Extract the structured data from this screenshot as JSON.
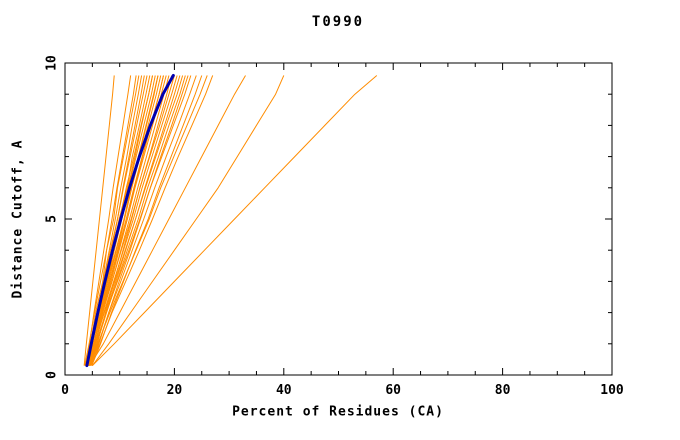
{
  "chart_data": {
    "type": "line",
    "title": "T0990",
    "xlabel": "Percent of Residues (CA)",
    "ylabel": "Distance Cutoff, A",
    "xlim": [
      0,
      100
    ],
    "ylim": [
      0,
      10
    ],
    "grid": false,
    "legend": "none",
    "xticks": {
      "major": [
        0,
        20,
        40,
        60,
        80,
        100
      ],
      "minor_step": 5
    },
    "yticks": {
      "major": [
        0,
        5,
        10
      ],
      "minor_step": 1
    },
    "y_samples": [
      0.3,
      1,
      2,
      3,
      4,
      5,
      6,
      7,
      8,
      9,
      9.6
    ],
    "highlight_series": {
      "name": "blue-center-line",
      "color": "#0000b0",
      "width": 3,
      "x": [
        4.0,
        4.8,
        6.0,
        7.3,
        8.7,
        10.2,
        11.8,
        13.6,
        15.6,
        17.9,
        19.8
      ]
    },
    "model_series": {
      "name": "orange-model-lines",
      "color": "#ff8c00",
      "width": 1,
      "lines": [
        [
          3.5,
          3.9,
          4.5,
          5.1,
          5.7,
          6.3,
          6.9,
          7.5,
          8.1,
          8.7,
          9.0
        ],
        [
          3.8,
          4.5,
          5.3,
          6.2,
          7.1,
          8.0,
          8.8,
          9.7,
          10.6,
          11.5,
          12.0
        ],
        [
          4.0,
          4.7,
          5.6,
          6.9,
          7.6,
          8.6,
          9.5,
          10.5,
          11.5,
          12.5,
          13.0
        ],
        [
          3.6,
          4.4,
          5.4,
          6.5,
          7.6,
          8.9,
          9.6,
          10.7,
          11.8,
          12.9,
          13.5
        ],
        [
          4.2,
          5.0,
          6.0,
          7.0,
          8.1,
          9.2,
          10.2,
          11.3,
          12.3,
          13.4,
          14.0
        ],
        [
          4.5,
          5.3,
          6.3,
          7.7,
          8.5,
          9.6,
          10.6,
          11.7,
          12.8,
          13.9,
          14.5
        ],
        [
          3.9,
          4.8,
          5.9,
          7.1,
          8.3,
          9.6,
          10.7,
          11.9,
          13.1,
          14.3,
          15.0
        ],
        [
          4.1,
          5.0,
          6.2,
          7.4,
          8.7,
          9.9,
          11.4,
          12.3,
          13.6,
          14.8,
          15.5
        ],
        [
          4.4,
          5.3,
          6.5,
          7.8,
          9.0,
          10.3,
          11.5,
          12.8,
          14.0,
          15.3,
          16.0
        ],
        [
          3.7,
          4.7,
          5.9,
          7.3,
          8.6,
          10.0,
          11.2,
          12.6,
          13.9,
          15.3,
          16.0
        ],
        [
          4.0,
          5.0,
          6.3,
          7.6,
          9.0,
          10.4,
          11.6,
          13.0,
          14.4,
          15.8,
          16.5
        ],
        [
          4.3,
          5.3,
          6.6,
          8.0,
          9.4,
          10.8,
          12.0,
          13.4,
          14.8,
          16.2,
          17.0
        ],
        [
          4.6,
          5.6,
          6.8,
          8.2,
          9.6,
          10.9,
          12.2,
          13.5,
          14.9,
          16.3,
          17.0
        ],
        [
          3.8,
          4.9,
          6.3,
          7.8,
          9.3,
          10.8,
          12.2,
          13.7,
          15.2,
          16.7,
          17.5
        ],
        [
          4.2,
          5.3,
          6.7,
          8.2,
          9.7,
          11.2,
          12.6,
          14.1,
          15.7,
          17.2,
          18.0
        ],
        [
          4.5,
          5.6,
          6.9,
          8.4,
          9.9,
          11.4,
          12.7,
          14.2,
          15.7,
          17.2,
          18.0
        ],
        [
          4.0,
          5.2,
          6.6,
          8.2,
          9.8,
          11.4,
          12.8,
          14.4,
          16.0,
          17.6,
          18.5
        ],
        [
          4.3,
          5.5,
          6.9,
          8.6,
          10.2,
          11.8,
          13.3,
          14.9,
          16.5,
          18.1,
          19.0
        ],
        [
          4.7,
          5.9,
          7.4,
          9.0,
          10.6,
          12.2,
          13.7,
          15.4,
          17.0,
          18.6,
          19.5
        ],
        [
          3.9,
          5.2,
          6.8,
          8.6,
          10.3,
          12.1,
          13.7,
          15.5,
          17.3,
          19.0,
          20.0
        ],
        [
          4.2,
          5.5,
          7.1,
          8.9,
          10.7,
          12.5,
          14.1,
          15.9,
          17.7,
          19.5,
          20.5
        ],
        [
          4.5,
          5.8,
          7.5,
          9.3,
          11.1,
          12.9,
          14.6,
          16.4,
          18.2,
          20.0,
          21.0
        ],
        [
          4.0,
          5.4,
          7.2,
          9.1,
          11.0,
          12.9,
          14.7,
          16.6,
          18.5,
          20.5,
          21.5
        ],
        [
          4.4,
          5.8,
          7.6,
          9.5,
          11.4,
          13.4,
          15.1,
          17.1,
          19.0,
          21.0,
          22.0
        ],
        [
          4.8,
          6.2,
          8.0,
          9.9,
          11.9,
          13.8,
          15.6,
          17.5,
          19.5,
          21.4,
          22.5
        ],
        [
          4.1,
          5.6,
          7.5,
          9.6,
          11.7,
          13.7,
          15.6,
          17.7,
          19.8,
          21.9,
          23.0
        ],
        [
          4.5,
          6.1,
          8.0,
          10.2,
          12.3,
          14.4,
          16.4,
          18.5,
          20.7,
          22.8,
          24.0
        ],
        [
          4.9,
          6.5,
          8.5,
          10.7,
          12.9,
          15.2,
          17.2,
          19.4,
          21.6,
          23.8,
          25.0
        ],
        [
          4.3,
          6.0,
          8.2,
          10.6,
          13.0,
          15.4,
          17.5,
          19.9,
          22.3,
          24.7,
          26.0
        ],
        [
          4.6,
          6.4,
          8.6,
          11.1,
          13.6,
          16.0,
          18.3,
          20.7,
          23.2,
          25.7,
          27.0
        ],
        [
          4.5,
          7.0,
          10.0,
          13.0,
          16.0,
          19.0,
          22.0,
          25.0,
          28.0,
          31.0,
          33.0
        ],
        [
          5.0,
          8.0,
          12.0,
          16.0,
          20.0,
          24.0,
          28.0,
          31.5,
          35.0,
          38.5,
          40.0
        ],
        [
          5.0,
          9.0,
          14.5,
          20.0,
          25.5,
          31.0,
          36.5,
          42.0,
          47.5,
          53.0,
          57.0
        ]
      ]
    }
  }
}
